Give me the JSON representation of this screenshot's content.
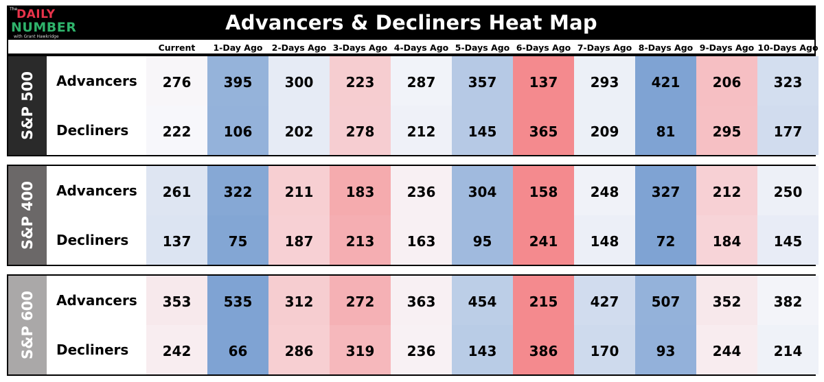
{
  "title": "Advancers & Decliners Heat Map",
  "logo": {
    "the": "The",
    "daily": "DAILY",
    "number": "NUMBER",
    "sub": "with Grant Hawkridge"
  },
  "columns": [
    "Current",
    "1-Day Ago",
    "2-Days Ago",
    "3-Days Ago",
    "4-Days Ago",
    "5-Days Ago",
    "6-Days Ago",
    "7-Days Ago",
    "8-Days Ago",
    "9-Days Ago",
    "10-Days Ago"
  ],
  "colors": {
    "blue_high": "#7fa3d3",
    "neutral": "#f8f8fb",
    "red_high": "#f48a8e",
    "sp500_band": "#2a2a2a",
    "sp400_band": "#6b6868",
    "sp600_band": "#aaa8a8"
  },
  "chart_data": {
    "type": "heatmap",
    "title": "Advancers & Decliners Heat Map",
    "columns": [
      "Current",
      "1-Day Ago",
      "2-Days Ago",
      "3-Days Ago",
      "4-Days Ago",
      "5-Days Ago",
      "6-Days Ago",
      "7-Days Ago",
      "8-Days Ago",
      "9-Days Ago",
      "10-Days Ago"
    ],
    "panels": [
      {
        "index": "S&P 500",
        "rows": [
          {
            "label": "Advancers",
            "values": [
              276,
              395,
              300,
              223,
              287,
              357,
              137,
              293,
              421,
              206,
              323
            ]
          },
          {
            "label": "Decliners",
            "values": [
              222,
              106,
              202,
              278,
              212,
              145,
              365,
              209,
              81,
              295,
              177
            ]
          }
        ]
      },
      {
        "index": "S&P 400",
        "rows": [
          {
            "label": "Advancers",
            "values": [
              261,
              322,
              211,
              183,
              236,
              304,
              158,
              248,
              327,
              212,
              250
            ]
          },
          {
            "label": "Decliners",
            "values": [
              137,
              75,
              187,
              213,
              163,
              95,
              241,
              148,
              72,
              184,
              145
            ]
          }
        ]
      },
      {
        "index": "S&P 600",
        "rows": [
          {
            "label": "Advancers",
            "values": [
              353,
              535,
              312,
              272,
              363,
              454,
              215,
              427,
              507,
              352,
              382
            ]
          },
          {
            "label": "Decliners",
            "values": [
              242,
              66,
              286,
              319,
              236,
              143,
              386,
              170,
              93,
              244,
              214
            ]
          }
        ]
      }
    ]
  }
}
